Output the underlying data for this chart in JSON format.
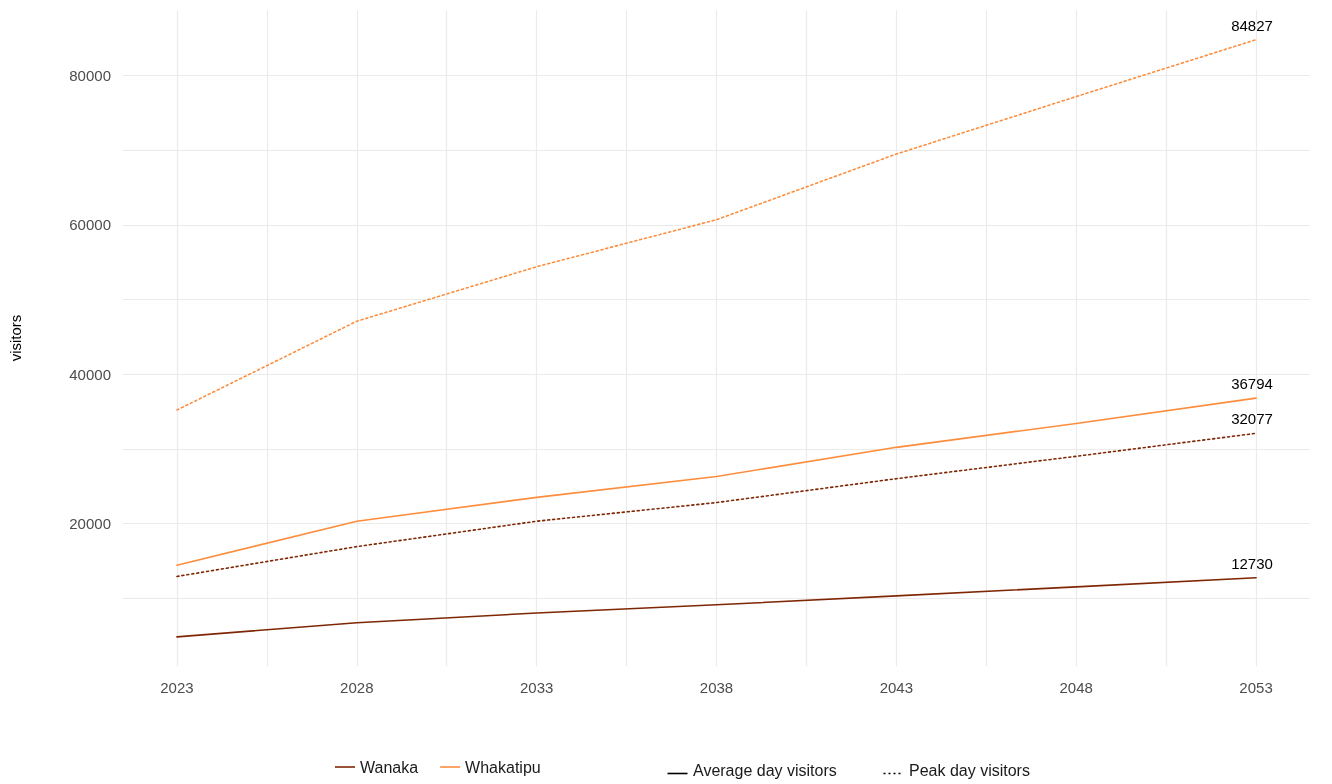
{
  "chart_data": {
    "type": "line",
    "ylabel": "visitors",
    "x": [
      2023,
      2028,
      2033,
      2038,
      2043,
      2048,
      2053
    ],
    "xlim": [
      2021.5,
      2054.5
    ],
    "xticks": [
      2023,
      {
        "value": 2025.5,
        "label": null
      },
      2028,
      {
        "value": 2030.5,
        "label": null
      },
      2033,
      {
        "value": 2035.5,
        "label": null
      },
      2038,
      {
        "value": 2040.5,
        "label": null
      },
      2043,
      {
        "value": 2045.5,
        "label": null
      },
      2048,
      {
        "value": 2050.5,
        "label": null
      },
      2053
    ],
    "ylim": [
      900,
      88800
    ],
    "yticks": [
      {
        "value": 10000,
        "label": null
      },
      20000,
      {
        "value": 30000,
        "label": null
      },
      40000,
      {
        "value": 50000,
        "label": null
      },
      60000,
      {
        "value": 70000,
        "label": null
      },
      80000
    ],
    "grid": true,
    "legend": "bottom",
    "marker": "none",
    "series": [
      {
        "name": "Wanaka",
        "color": "#7f2704",
        "line_style": "solid",
        "values": [
          4800,
          6700,
          8000,
          9100,
          10300,
          11500,
          12730
        ],
        "value_labels": [
          null,
          null,
          null,
          null,
          null,
          null,
          "12730"
        ]
      },
      {
        "name": "Whakatipu",
        "color": "#fd8d3c",
        "line_style": "solid",
        "values": [
          14400,
          20300,
          23500,
          26300,
          30200,
          33400,
          36794
        ],
        "value_labels": [
          null,
          null,
          null,
          null,
          null,
          null,
          "36794"
        ]
      },
      {
        "color": "#7f2704",
        "line_style": "dotted",
        "values": [
          12900,
          16900,
          20300,
          22800,
          26000,
          29000,
          32077
        ],
        "value_labels": [
          null,
          null,
          null,
          null,
          null,
          null,
          "32077"
        ]
      },
      {
        "color": "#fd8d3c",
        "line_style": "dotted",
        "values": [
          35200,
          47100,
          54400,
          60700,
          69500,
          77200,
          84827
        ],
        "value_labels": [
          null,
          null,
          null,
          null,
          null,
          null,
          "84827"
        ]
      }
    ],
    "annotations": [
      "Average day visitors",
      "Peak day visitors"
    ]
  }
}
